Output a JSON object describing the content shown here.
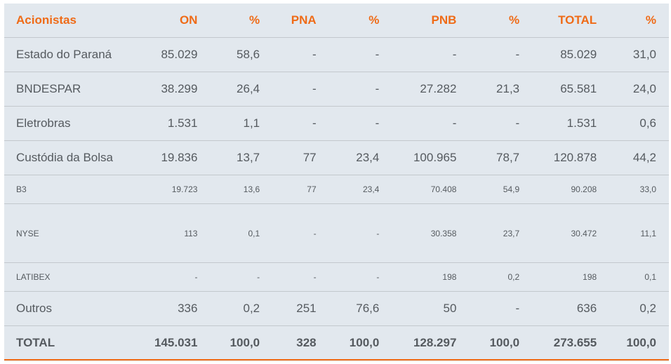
{
  "headers": [
    "Acionistas",
    "ON",
    "%",
    "PNA",
    "%",
    "PNB",
    "%",
    "TOTAL",
    "%"
  ],
  "rows": [
    [
      "Estado do Paraná",
      "85.029",
      "58,6",
      "-",
      "-",
      "-",
      "-",
      "85.029",
      "31,0"
    ],
    [
      "BNDESPAR",
      "38.299",
      "26,4",
      "-",
      "-",
      "27.282",
      "21,3",
      "65.581",
      "24,0"
    ],
    [
      "Eletrobras",
      "1.531",
      "1,1",
      "-",
      "-",
      "-",
      "-",
      "1.531",
      "0,6"
    ],
    [
      "Custódia da Bolsa",
      "19.836",
      "13,7",
      "77",
      "23,4",
      "100.965",
      "78,7",
      "120.878",
      "44,2"
    ],
    [
      "B3",
      "19.723",
      "13,6",
      "77",
      "23,4",
      "70.408",
      "54,9",
      "90.208",
      "33,0"
    ],
    [
      "NYSE",
      "113",
      "0,1",
      "-",
      "-",
      "30.358",
      "23,7",
      "30.472",
      "11,1"
    ],
    [
      "LATIBEX",
      "-",
      "-",
      "-",
      "-",
      "198",
      "0,2",
      "198",
      "0,1"
    ],
    [
      "Outros",
      "336",
      "0,2",
      "251",
      "76,6",
      "50",
      "-",
      "636",
      "0,2"
    ]
  ],
  "total": [
    "TOTAL",
    "145.031",
    "100,0",
    "328",
    "100,0",
    "128.297",
    "100,0",
    "273.655",
    "100,0"
  ],
  "colors": {
    "accent": "#ef6b17",
    "background": "#e2e8ee",
    "text": "#555a5f",
    "divider": "#c3c8cd"
  }
}
